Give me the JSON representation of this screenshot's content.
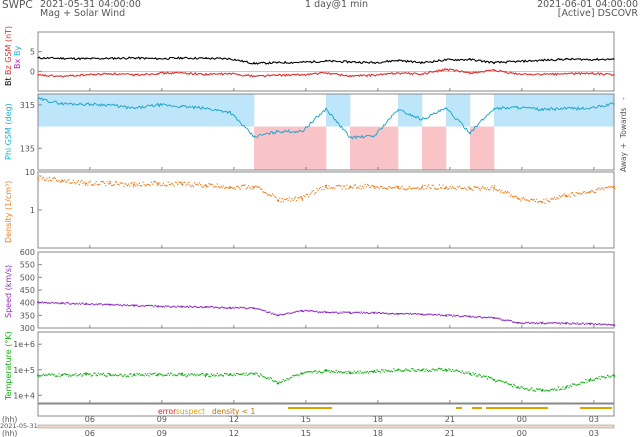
{
  "header": {
    "org": "SWPC",
    "start_time": "2021-05-31 04:00:00",
    "product": "Mag + Solar Wind",
    "span": "1 day@1 min",
    "end_time": "2021-06-01 04:00:00",
    "status": "[Active] DSCOVR"
  },
  "colors": {
    "bt": "#000000",
    "bz": "#e03030",
    "bx": "#c020c0",
    "by": "#20b0d0",
    "phi_band_towards": "#bde6fb",
    "phi_band_away": "#f8c4c8",
    "phi_dots": "#1aa0c8",
    "density": "#f08020",
    "speed": "#9030c0",
    "temperature": "#10b010",
    "error": "#d02020",
    "suspect": "#e0a000",
    "density_low": "#c07000",
    "axis": "#888888",
    "zero_line": "#aaaaaa"
  },
  "chart_data": [
    {
      "type": "line",
      "title": "",
      "ylabel_parts": [
        "Bt",
        "Bz GSM (nT)",
        "Bx",
        "By"
      ],
      "ylim": [
        -5,
        10
      ],
      "y_ticks": [
        5,
        0
      ],
      "x_ticks": [
        "06",
        "09",
        "12",
        "15",
        "18",
        "21",
        "00",
        "03"
      ],
      "x": [
        0,
        1,
        2,
        3,
        4,
        5,
        6,
        7,
        8,
        9,
        10,
        11,
        12,
        13,
        14,
        15,
        16,
        17,
        18,
        19,
        20,
        21,
        22,
        23,
        24
      ],
      "series": [
        {
          "name": "Bt",
          "color": "#000000",
          "values": [
            3.4,
            3.3,
            3.2,
            3.3,
            3.4,
            3.2,
            3.4,
            3.3,
            3.2,
            2.0,
            2.2,
            2.3,
            2.6,
            2.4,
            2.2,
            2.8,
            2.2,
            2.9,
            3.0,
            2.2,
            2.5,
            2.8,
            3.1,
            3.0,
            3.1
          ]
        },
        {
          "name": "Bz GSM",
          "color": "#e03030",
          "values": [
            -1.0,
            -1.3,
            -0.9,
            -0.6,
            -0.9,
            -0.5,
            -0.4,
            -0.8,
            -0.6,
            -1.2,
            -1.0,
            -0.9,
            -0.4,
            -1.2,
            -1.0,
            -0.4,
            -0.7,
            0.5,
            -0.4,
            0.2,
            -0.7,
            -0.8,
            -0.6,
            -0.5,
            -0.9
          ]
        }
      ]
    },
    {
      "type": "scatter",
      "title": "",
      "ylabel": "Phi GSM (deg)",
      "ylim": [
        45,
        360
      ],
      "y_ticks": [
        315,
        135
      ],
      "right_labels": [
        "Away",
        "+",
        "Towards",
        "-"
      ],
      "x": [
        0,
        1,
        2,
        3,
        4,
        5,
        6,
        7,
        8,
        9,
        10,
        11,
        12,
        13,
        14,
        15,
        16,
        17,
        18,
        19,
        20,
        21,
        22,
        23,
        24
      ],
      "values": [
        340,
        320,
        318,
        315,
        300,
        315,
        308,
        300,
        285,
        182,
        205,
        205,
        298,
        180,
        185,
        295,
        255,
        300,
        200,
        300,
        305,
        295,
        300,
        300,
        320
      ],
      "sector": [
        "towards",
        "towards",
        "towards",
        "towards",
        "towards",
        "towards",
        "towards",
        "towards",
        "towards",
        "away",
        "away",
        "away",
        "towards",
        "away",
        "away",
        "towards",
        "away",
        "towards",
        "away",
        "towards",
        "towards",
        "towards",
        "towards",
        "towards",
        "towards"
      ]
    },
    {
      "type": "scatter",
      "title": "",
      "ylabel": "Density (1/cm³)",
      "ylog": true,
      "ylim": [
        0.1,
        10
      ],
      "y_ticks": [
        10,
        1
      ],
      "x": [
        0,
        1,
        2,
        3,
        4,
        5,
        6,
        7,
        8,
        9,
        10,
        11,
        12,
        13,
        14,
        15,
        16,
        17,
        18,
        19,
        20,
        21,
        22,
        23,
        24
      ],
      "values": [
        7.0,
        6.0,
        5.0,
        5.0,
        4.6,
        5.0,
        4.8,
        4.4,
        4.0,
        4.0,
        1.8,
        2.0,
        4.0,
        4.0,
        4.2,
        3.8,
        4.0,
        4.0,
        3.6,
        3.8,
        2.0,
        1.6,
        2.4,
        3.0,
        4.2
      ]
    },
    {
      "type": "scatter",
      "title": "",
      "ylabel": "Speed (km/s)",
      "ylim": [
        300,
        600
      ],
      "y_ticks": [
        600,
        550,
        500,
        450,
        400,
        350,
        300
      ],
      "x": [
        0,
        1,
        2,
        3,
        4,
        5,
        6,
        7,
        8,
        9,
        10,
        11,
        12,
        13,
        14,
        15,
        16,
        17,
        18,
        19,
        20,
        21,
        22,
        23,
        24
      ],
      "values": [
        402,
        398,
        395,
        392,
        388,
        386,
        384,
        383,
        380,
        378,
        350,
        368,
        362,
        360,
        360,
        356,
        354,
        350,
        345,
        340,
        320,
        320,
        318,
        316,
        312
      ]
    },
    {
      "type": "scatter",
      "title": "",
      "ylabel": "Temperature (°K)",
      "ylog": true,
      "ylim": [
        5000,
        3000000
      ],
      "y_ticks": [
        1000000,
        100000,
        10000
      ],
      "y_tick_labels": [
        "1e+6",
        "1e+5",
        "1e+4"
      ],
      "x": [
        0,
        1,
        2,
        3,
        4,
        5,
        6,
        7,
        8,
        9,
        10,
        11,
        12,
        13,
        14,
        15,
        16,
        17,
        18,
        19,
        20,
        21,
        22,
        23,
        24
      ],
      "values": [
        60000,
        62000,
        65000,
        64000,
        63000,
        66000,
        64000,
        62000,
        65000,
        70000,
        30000,
        70000,
        90000,
        80000,
        85000,
        100000,
        95000,
        100000,
        70000,
        40000,
        20000,
        15000,
        20000,
        40000,
        60000
      ]
    }
  ],
  "legend": {
    "error": "error",
    "suspect": "suspect",
    "density": "density < 1"
  },
  "axis_labels": {
    "hh_top": "(hh)",
    "hh_bottom": "(hh)",
    "date_bottom": "2021-05-31"
  }
}
